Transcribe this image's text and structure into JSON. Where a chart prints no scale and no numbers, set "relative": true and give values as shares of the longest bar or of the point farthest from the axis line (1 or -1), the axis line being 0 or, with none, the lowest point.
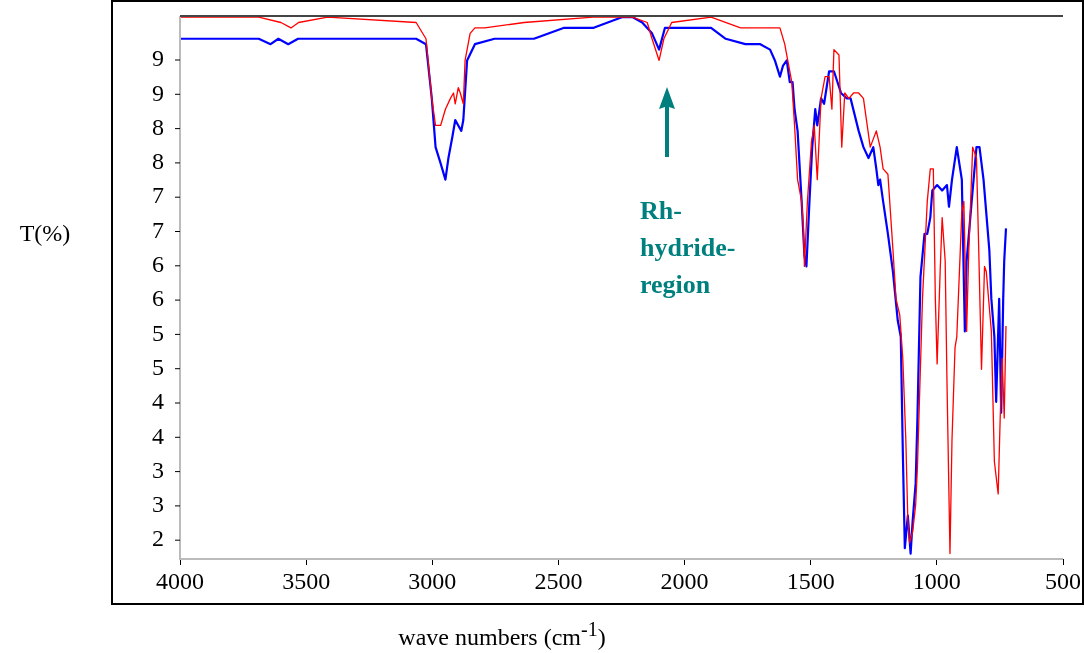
{
  "chart_data": {
    "type": "line",
    "relative": true,
    "xlabel": "wave numbers (cm$^{-1}$)",
    "ylabel": "T(%)",
    "xlim": [
      4000,
      500
    ],
    "xticks": [
      4000,
      3500,
      3000,
      2500,
      2000,
      1500,
      1000,
      500
    ],
    "grid": false,
    "legend": false,
    "marker": "none",
    "line_style": "solid",
    "annotations": [
      "Rh-hydride-region",
      "9",
      "9",
      "8",
      "8",
      "7",
      "7",
      "6",
      "6",
      "5",
      "5",
      "4",
      "4",
      "3",
      "3",
      "2"
    ],
    "series": [
      {
        "color": "#ff0000",
        "x": [
          4000,
          3688,
          3600,
          3560,
          3530,
          3415,
          3064,
          3025,
          3002,
          2987,
          2967,
          2948,
          2928,
          2916,
          2909,
          2897,
          2889,
          2877,
          2870,
          2850,
          2831,
          2792,
          2636,
          2363,
          2207,
          2148,
          2129,
          2101,
          2082,
          2051,
          1895,
          1778,
          1622,
          1603,
          1591,
          1575,
          1564,
          1552,
          1536,
          1529,
          1525,
          1513,
          1497,
          1486,
          1474,
          1459,
          1443,
          1427,
          1416,
          1408,
          1388,
          1377,
          1365,
          1349,
          1330,
          1310,
          1291,
          1279,
          1264,
          1240,
          1225,
          1213,
          1194,
          1174,
          1162,
          1147,
          1135,
          1123,
          1115,
          1108,
          1096,
          1084,
          1077,
          1057,
          1038,
          1026,
          1014,
          1006,
          999,
          987,
          979,
          967,
          960,
          948,
          940,
          928,
          921,
          901,
          893,
          882,
          874,
          858,
          843,
          835,
          823,
          811,
          804,
          784,
          772,
          757,
          749,
          741,
          733,
          726
        ],
        "values": [
          1.0,
          1.0,
          0.99,
          0.98,
          0.99,
          1.0,
          0.99,
          0.96,
          0.85,
          0.8,
          0.8,
          0.83,
          0.85,
          0.86,
          0.84,
          0.87,
          0.86,
          0.84,
          0.92,
          0.97,
          0.98,
          0.98,
          0.99,
          1.0,
          1.0,
          0.99,
          0.96,
          0.92,
          0.96,
          0.99,
          1.0,
          0.98,
          0.98,
          0.95,
          0.92,
          0.88,
          0.8,
          0.7,
          0.66,
          0.61,
          0.54,
          0.66,
          0.77,
          0.8,
          0.7,
          0.85,
          0.89,
          0.89,
          0.83,
          0.94,
          0.93,
          0.76,
          0.86,
          0.85,
          0.86,
          0.86,
          0.85,
          0.81,
          0.76,
          0.79,
          0.76,
          0.72,
          0.71,
          0.57,
          0.48,
          0.45,
          0.37,
          0.22,
          0.07,
          0.03,
          0.05,
          0.1,
          0.17,
          0.48,
          0.66,
          0.72,
          0.72,
          0.48,
          0.36,
          0.53,
          0.63,
          0.55,
          0.33,
          0.01,
          0.22,
          0.39,
          0.41,
          0.64,
          0.66,
          0.42,
          0.56,
          0.76,
          0.74,
          0.59,
          0.35,
          0.54,
          0.53,
          0.42,
          0.18,
          0.12,
          0.26,
          0.37,
          0.26,
          0.43
        ]
      },
      {
        "color": "#0000ff",
        "x": [
          4000,
          3688,
          3641,
          3610,
          3571,
          3532,
          3415,
          3064,
          3025,
          3002,
          2987,
          2967,
          2948,
          2936,
          2920,
          2909,
          2897,
          2885,
          2877,
          2862,
          2831,
          2753,
          2597,
          2480,
          2363,
          2246,
          2207,
          2168,
          2129,
          2101,
          2078,
          2051,
          1895,
          1837,
          1759,
          1700,
          1661,
          1642,
          1622,
          1610,
          1595,
          1583,
          1572,
          1564,
          1552,
          1536,
          1525,
          1517,
          1505,
          1494,
          1482,
          1474,
          1459,
          1447,
          1427,
          1408,
          1380,
          1357,
          1342,
          1310,
          1291,
          1271,
          1252,
          1240,
          1232,
          1225,
          1213,
          1194,
          1174,
          1155,
          1143,
          1135,
          1127,
          1115,
          1104,
          1096,
          1084,
          1077,
          1065,
          1049,
          1038,
          1026,
          1018,
          999,
          979,
          960,
          952,
          940,
          921,
          901,
          889,
          882,
          862,
          843,
          831,
          815,
          792,
          784,
          772,
          765,
          753,
          745,
          737,
          733,
          726
        ],
        "values": [
          0.96,
          0.96,
          0.95,
          0.96,
          0.95,
          0.96,
          0.96,
          0.96,
          0.95,
          0.85,
          0.76,
          0.73,
          0.7,
          0.74,
          0.78,
          0.81,
          0.8,
          0.79,
          0.81,
          0.92,
          0.95,
          0.96,
          0.96,
          0.98,
          0.98,
          1.0,
          1.0,
          0.99,
          0.97,
          0.94,
          0.98,
          0.98,
          0.98,
          0.96,
          0.95,
          0.95,
          0.94,
          0.92,
          0.89,
          0.91,
          0.92,
          0.88,
          0.88,
          0.83,
          0.79,
          0.66,
          0.56,
          0.54,
          0.66,
          0.76,
          0.83,
          0.8,
          0.85,
          0.84,
          0.9,
          0.9,
          0.86,
          0.85,
          0.85,
          0.79,
          0.76,
          0.74,
          0.76,
          0.72,
          0.69,
          0.7,
          0.66,
          0.6,
          0.53,
          0.44,
          0.41,
          0.2,
          0.02,
          0.08,
          0.01,
          0.07,
          0.14,
          0.26,
          0.52,
          0.6,
          0.6,
          0.63,
          0.68,
          0.69,
          0.68,
          0.69,
          0.65,
          0.7,
          0.76,
          0.7,
          0.42,
          0.55,
          0.66,
          0.76,
          0.76,
          0.7,
          0.57,
          0.48,
          0.41,
          0.29,
          0.48,
          0.27,
          0.48,
          0.55,
          0.61
        ]
      }
    ]
  }
}
